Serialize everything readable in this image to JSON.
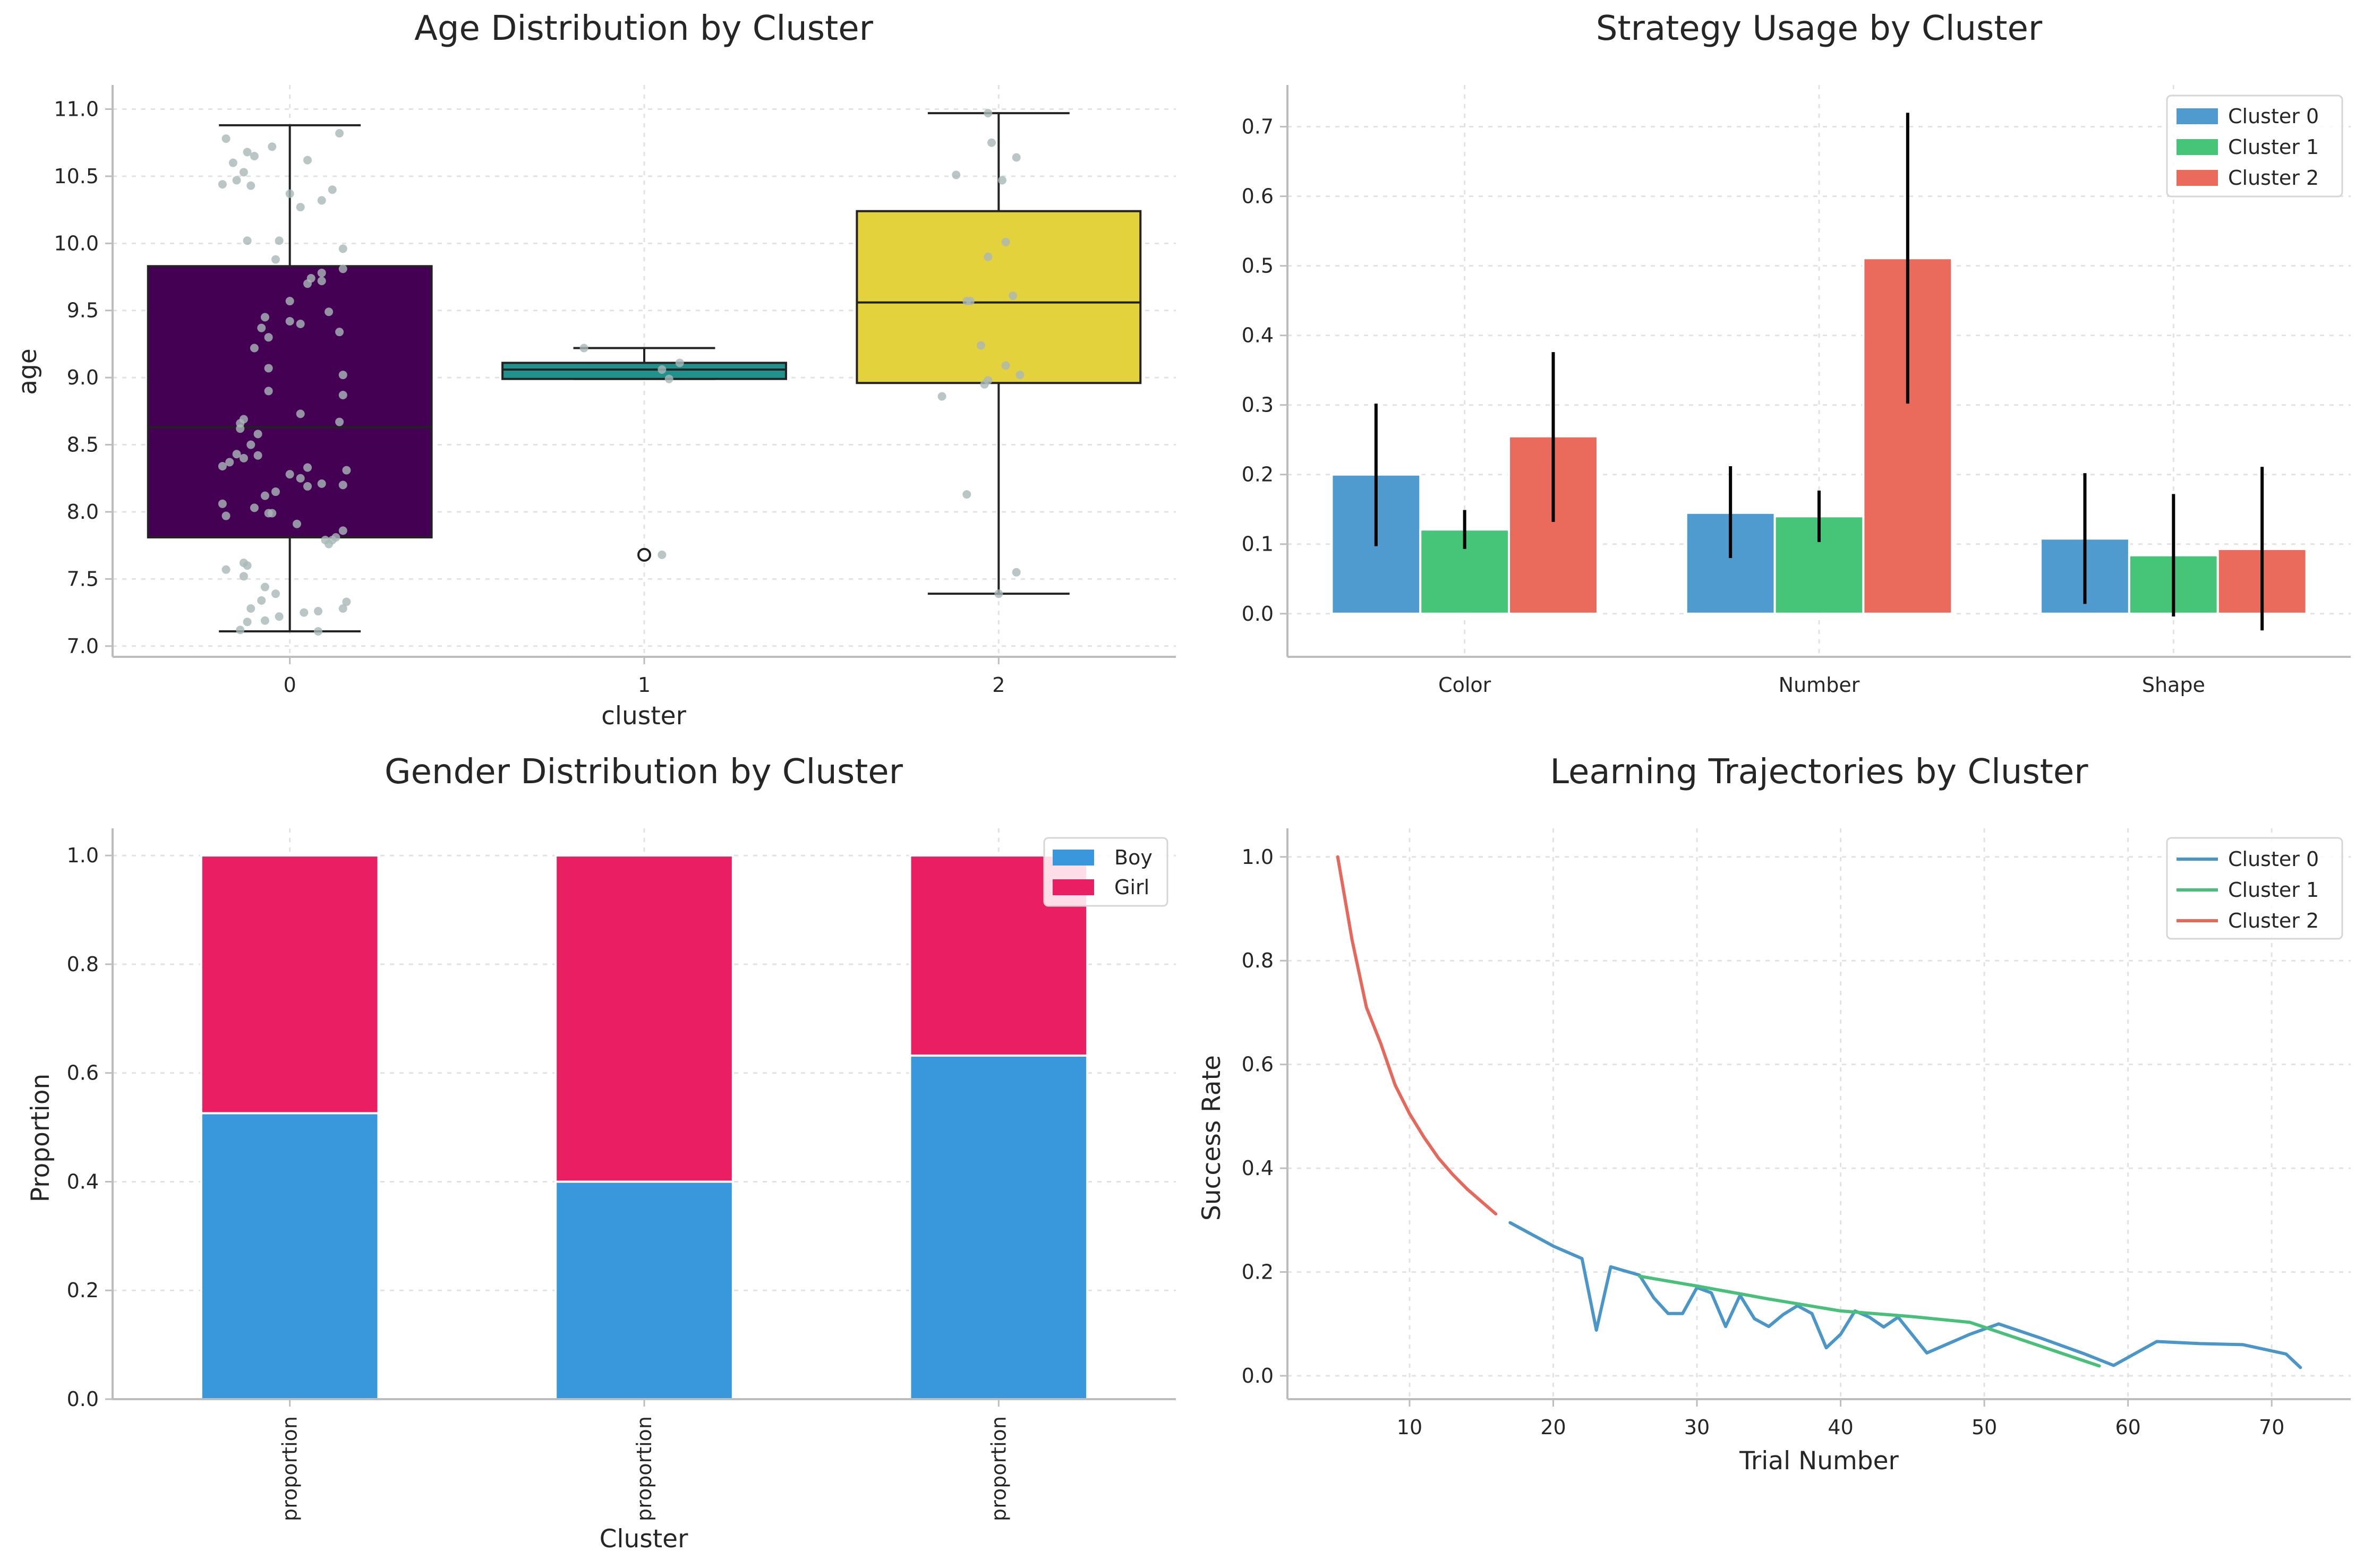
{
  "chart_data": [
    {
      "type": "box",
      "title": "Age Distribution by Cluster",
      "xlabel": "cluster",
      "ylabel": "age",
      "ylim": [
        6.92,
        11.18
      ],
      "yticks": [
        "7.0",
        "7.5",
        "8.0",
        "8.5",
        "9.0",
        "9.5",
        "10.0",
        "10.5",
        "11.0"
      ],
      "categories": [
        "0",
        "1",
        "2"
      ],
      "boxes": [
        {
          "name": "0",
          "color": "#440154",
          "q1": 7.81,
          "median": 8.63,
          "q3": 9.83,
          "whisker_low": 7.11,
          "whisker_high": 10.88,
          "outliers": []
        },
        {
          "name": "1",
          "color": "#21918c",
          "q1": 8.99,
          "median": 9.06,
          "q3": 9.11,
          "whisker_low": 8.99,
          "whisker_high": 9.22,
          "outliers": [
            7.68
          ]
        },
        {
          "name": "2",
          "color": "#e3d23b",
          "q1": 8.96,
          "median": 9.56,
          "q3": 10.24,
          "whisker_low": 7.39,
          "whisker_high": 10.97,
          "outliers": []
        }
      ],
      "points": [
        [
          {
            "x": -0.18,
            "y": 10.78
          },
          {
            "x": 0.14,
            "y": 10.82
          },
          {
            "x": -0.12,
            "y": 10.68
          },
          {
            "x": -0.05,
            "y": 10.72
          },
          {
            "x": -0.1,
            "y": 10.65
          },
          {
            "x": -0.16,
            "y": 10.6
          },
          {
            "x": 0.05,
            "y": 10.62
          },
          {
            "x": -0.13,
            "y": 10.53
          },
          {
            "x": -0.15,
            "y": 10.47
          },
          {
            "x": -0.19,
            "y": 10.44
          },
          {
            "x": -0.11,
            "y": 10.43
          },
          {
            "x": 0.12,
            "y": 10.4
          },
          {
            "x": 0.0,
            "y": 10.37
          },
          {
            "x": 0.09,
            "y": 10.32
          },
          {
            "x": 0.03,
            "y": 10.27
          },
          {
            "x": -0.03,
            "y": 10.02
          },
          {
            "x": -0.12,
            "y": 10.02
          },
          {
            "x": 0.15,
            "y": 9.96
          },
          {
            "x": -0.04,
            "y": 9.88
          },
          {
            "x": 0.15,
            "y": 9.81
          },
          {
            "x": 0.09,
            "y": 9.78
          },
          {
            "x": 0.06,
            "y": 9.74
          },
          {
            "x": 0.09,
            "y": 9.72
          },
          {
            "x": 0.05,
            "y": 9.7
          },
          {
            "x": 0.0,
            "y": 9.57
          },
          {
            "x": 0.11,
            "y": 9.49
          },
          {
            "x": -0.07,
            "y": 9.45
          },
          {
            "x": 0.0,
            "y": 9.42
          },
          {
            "x": 0.03,
            "y": 9.4
          },
          {
            "x": -0.08,
            "y": 9.37
          },
          {
            "x": 0.14,
            "y": 9.34
          },
          {
            "x": -0.06,
            "y": 9.3
          },
          {
            "x": -0.1,
            "y": 9.22
          },
          {
            "x": -0.06,
            "y": 9.07
          },
          {
            "x": 0.15,
            "y": 9.02
          },
          {
            "x": -0.06,
            "y": 8.9
          },
          {
            "x": 0.15,
            "y": 8.87
          },
          {
            "x": 0.03,
            "y": 8.73
          },
          {
            "x": -0.13,
            "y": 8.69
          },
          {
            "x": 0.14,
            "y": 8.67
          },
          {
            "x": -0.14,
            "y": 8.66
          },
          {
            "x": -0.14,
            "y": 8.62
          },
          {
            "x": -0.09,
            "y": 8.58
          },
          {
            "x": -0.11,
            "y": 8.5
          },
          {
            "x": -0.15,
            "y": 8.43
          },
          {
            "x": -0.09,
            "y": 8.42
          },
          {
            "x": -0.13,
            "y": 8.4
          },
          {
            "x": -0.17,
            "y": 8.37
          },
          {
            "x": -0.19,
            "y": 8.34
          },
          {
            "x": 0.05,
            "y": 8.33
          },
          {
            "x": 0.16,
            "y": 8.31
          },
          {
            "x": 0.0,
            "y": 8.28
          },
          {
            "x": 0.03,
            "y": 8.25
          },
          {
            "x": 0.09,
            "y": 8.21
          },
          {
            "x": 0.15,
            "y": 8.2
          },
          {
            "x": 0.05,
            "y": 8.19
          },
          {
            "x": -0.07,
            "y": 8.12
          },
          {
            "x": -0.04,
            "y": 8.15
          },
          {
            "x": -0.19,
            "y": 8.06
          },
          {
            "x": -0.1,
            "y": 8.03
          },
          {
            "x": -0.06,
            "y": 7.99
          },
          {
            "x": -0.05,
            "y": 7.99
          },
          {
            "x": -0.18,
            "y": 7.97
          },
          {
            "x": 0.02,
            "y": 7.91
          },
          {
            "x": 0.15,
            "y": 7.86
          },
          {
            "x": 0.13,
            "y": 7.81
          },
          {
            "x": 0.1,
            "y": 7.79
          },
          {
            "x": 0.12,
            "y": 7.79
          },
          {
            "x": 0.11,
            "y": 7.76
          },
          {
            "x": -0.13,
            "y": 7.62
          },
          {
            "x": -0.12,
            "y": 7.6
          },
          {
            "x": -0.18,
            "y": 7.57
          },
          {
            "x": -0.13,
            "y": 7.52
          },
          {
            "x": -0.07,
            "y": 7.44
          },
          {
            "x": -0.04,
            "y": 7.39
          },
          {
            "x": -0.08,
            "y": 7.34
          },
          {
            "x": 0.16,
            "y": 7.33
          },
          {
            "x": 0.15,
            "y": 7.28
          },
          {
            "x": -0.11,
            "y": 7.28
          },
          {
            "x": 0.08,
            "y": 7.26
          },
          {
            "x": 0.04,
            "y": 7.25
          },
          {
            "x": -0.03,
            "y": 7.22
          },
          {
            "x": -0.07,
            "y": 7.19
          },
          {
            "x": -0.12,
            "y": 7.18
          },
          {
            "x": -0.14,
            "y": 7.12
          },
          {
            "x": 0.08,
            "y": 7.11
          }
        ],
        [
          {
            "x": 0.83,
            "y": 9.22
          },
          {
            "x": 1.1,
            "y": 9.11
          },
          {
            "x": 1.05,
            "y": 9.06
          },
          {
            "x": 1.07,
            "y": 8.99
          },
          {
            "x": 1.05,
            "y": 7.68
          }
        ],
        [
          {
            "x": 1.97,
            "y": 10.97
          },
          {
            "x": 1.98,
            "y": 10.75
          },
          {
            "x": 2.05,
            "y": 10.64
          },
          {
            "x": 1.88,
            "y": 10.51
          },
          {
            "x": 2.01,
            "y": 10.47
          },
          {
            "x": 2.02,
            "y": 10.01
          },
          {
            "x": 1.97,
            "y": 9.9
          },
          {
            "x": 2.04,
            "y": 9.61
          },
          {
            "x": 1.91,
            "y": 9.57
          },
          {
            "x": 1.92,
            "y": 9.57
          },
          {
            "x": 1.95,
            "y": 9.24
          },
          {
            "x": 2.02,
            "y": 9.09
          },
          {
            "x": 2.06,
            "y": 9.02
          },
          {
            "x": 1.97,
            "y": 8.98
          },
          {
            "x": 1.96,
            "y": 8.95
          },
          {
            "x": 1.84,
            "y": 8.86
          },
          {
            "x": 1.91,
            "y": 8.13
          },
          {
            "x": 2.05,
            "y": 7.55
          },
          {
            "x": 2.0,
            "y": 7.39
          }
        ]
      ]
    },
    {
      "type": "bar",
      "title": "Strategy Usage by Cluster",
      "categories": [
        "Color",
        "Number",
        "Shape"
      ],
      "ylim": [
        -0.062,
        0.76
      ],
      "yticks": [
        "0.0",
        "0.1",
        "0.2",
        "0.3",
        "0.4",
        "0.5",
        "0.6",
        "0.7"
      ],
      "legend": "top-right",
      "series": [
        {
          "name": "Cluster 0",
          "color": "#4f9bd0",
          "values": [
            0.2,
            0.145,
            0.108
          ],
          "err_low": [
            0.097,
            0.08,
            0.014
          ],
          "err_high": [
            0.302,
            0.212,
            0.202
          ]
        },
        {
          "name": "Cluster 1",
          "color": "#46c478",
          "values": [
            0.121,
            0.14,
            0.084
          ],
          "err_low": [
            0.093,
            0.103,
            -0.004
          ],
          "err_high": [
            0.149,
            0.177,
            0.172
          ]
        },
        {
          "name": "Cluster 2",
          "color": "#ea6a5c",
          "values": [
            0.255,
            0.511,
            0.093
          ],
          "err_low": [
            0.132,
            0.302,
            -0.024
          ],
          "err_high": [
            0.376,
            0.72,
            0.211
          ]
        }
      ]
    },
    {
      "type": "bar",
      "stacked": true,
      "title": "Gender Distribution by Cluster",
      "xlabel": "Cluster",
      "ylabel": "Proportion",
      "categories": [
        "proportion",
        "proportion",
        "proportion"
      ],
      "ylim": [
        0,
        1.05
      ],
      "yticks": [
        "0.0",
        "0.2",
        "0.4",
        "0.6",
        "0.8",
        "1.0"
      ],
      "legend": "top-right",
      "series": [
        {
          "name": "Boy",
          "color": "#3898db",
          "values": [
            0.526,
            0.4,
            0.632
          ]
        },
        {
          "name": "Girl",
          "color": "#e91e63",
          "values": [
            0.474,
            0.6,
            0.368
          ]
        }
      ]
    },
    {
      "type": "line",
      "title": "Learning Trajectories by Cluster",
      "xlabel": "Trial Number",
      "ylabel": "Success Rate",
      "xlim": [
        1.5,
        75.5
      ],
      "ylim": [
        -0.045,
        1.055
      ],
      "xticks": [
        10,
        20,
        30,
        40,
        50,
        60,
        70
      ],
      "yticks": [
        "0.0",
        "0.2",
        "0.4",
        "0.6",
        "0.8",
        "1.0"
      ],
      "legend": "top-right",
      "grid": true,
      "series": [
        {
          "name": "Cluster 0",
          "color": "#4b96c8",
          "x": [
            17,
            20,
            22,
            23,
            24,
            26,
            27,
            28,
            29,
            30,
            31,
            32,
            33,
            34,
            35,
            36,
            37,
            38,
            39,
            40,
            41,
            42,
            43,
            44,
            46,
            49,
            51,
            54,
            57,
            59,
            62,
            65,
            68,
            71,
            72
          ],
          "y": [
            0.295,
            0.25,
            0.226,
            0.088,
            0.21,
            0.194,
            0.15,
            0.12,
            0.12,
            0.17,
            0.16,
            0.095,
            0.155,
            0.11,
            0.095,
            0.118,
            0.135,
            0.12,
            0.054,
            0.08,
            0.125,
            0.113,
            0.094,
            0.113,
            0.044,
            0.08,
            0.1,
            0.072,
            0.042,
            0.02,
            0.066,
            0.062,
            0.06,
            0.042,
            0.016
          ]
        },
        {
          "name": "Cluster 1",
          "color": "#48c07a",
          "x": [
            26,
            30,
            35,
            40,
            45,
            49,
            52,
            55,
            58
          ],
          "y": [
            0.192,
            0.173,
            0.148,
            0.125,
            0.114,
            0.103,
            0.075,
            0.047,
            0.019
          ]
        },
        {
          "name": "Cluster 2",
          "color": "#e6685a",
          "x": [
            5,
            6,
            7,
            8,
            9,
            10,
            11,
            12,
            13,
            14,
            15,
            16
          ],
          "y": [
            1.0,
            0.84,
            0.71,
            0.64,
            0.56,
            0.505,
            0.46,
            0.42,
            0.388,
            0.36,
            0.336,
            0.312
          ]
        }
      ]
    }
  ]
}
